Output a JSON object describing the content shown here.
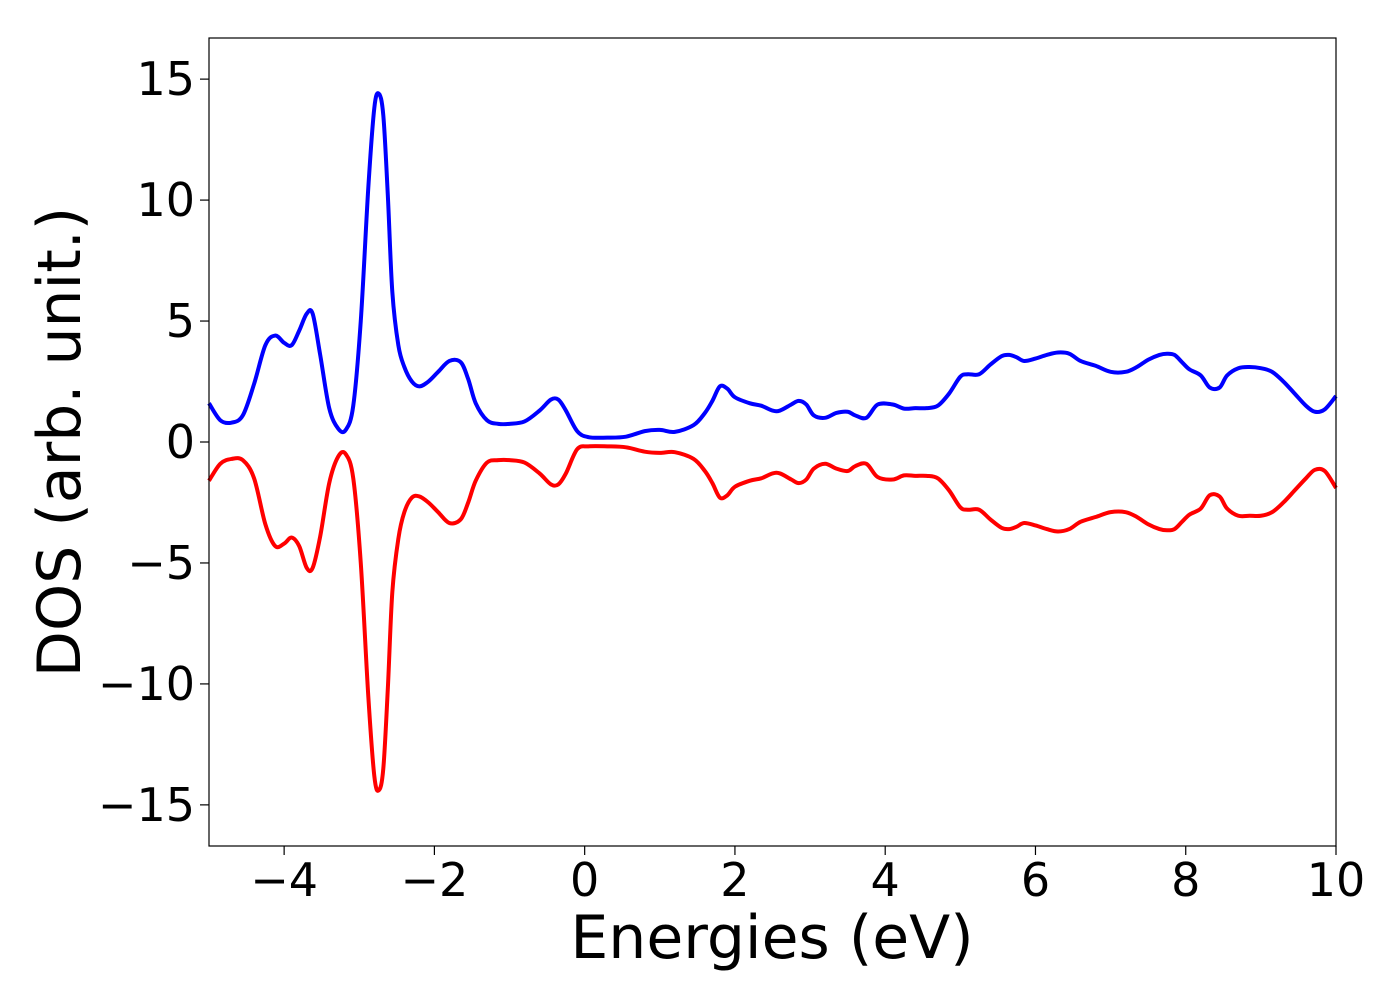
{
  "chart_data": {
    "type": "line",
    "xlabel": "Energies (eV)",
    "ylabel": "DOS (arb. unit.)",
    "xlim": [
      -5,
      10
    ],
    "ylim": [
      -16.7,
      16.7
    ],
    "xticks": [
      -4,
      -2,
      0,
      2,
      4,
      6,
      8,
      10
    ],
    "yticks": [
      -15,
      -10,
      -5,
      0,
      5,
      10,
      15
    ],
    "xtick_labels": [
      "−4",
      "−2",
      "0",
      "2",
      "4",
      "6",
      "8",
      "10"
    ],
    "ytick_labels": [
      "−15",
      "−10",
      "−5",
      "0",
      "5",
      "10",
      "15"
    ],
    "grid": false,
    "legend": "none",
    "series": [
      {
        "color": "#0000ff",
        "x": [
          -5.0,
          -4.85,
          -4.7,
          -4.55,
          -4.4,
          -4.25,
          -4.12,
          -4.0,
          -3.9,
          -3.8,
          -3.7,
          -3.62,
          -3.52,
          -3.4,
          -3.28,
          -3.18,
          -3.08,
          -2.98,
          -2.88,
          -2.8,
          -2.74,
          -2.68,
          -2.62,
          -2.56,
          -2.48,
          -2.4,
          -2.3,
          -2.2,
          -2.08,
          -1.95,
          -1.8,
          -1.65,
          -1.55,
          -1.45,
          -1.3,
          -1.15,
          -1.0,
          -0.8,
          -0.6,
          -0.45,
          -0.35,
          -0.25,
          -0.1,
          0.05,
          0.3,
          0.55,
          0.8,
          1.0,
          1.2,
          1.45,
          1.6,
          1.7,
          1.8,
          1.9,
          2.0,
          2.2,
          2.35,
          2.5,
          2.6,
          2.75,
          2.85,
          2.95,
          3.05,
          3.2,
          3.35,
          3.5,
          3.6,
          3.75,
          3.9,
          4.1,
          4.25,
          4.4,
          4.55,
          4.7,
          4.85,
          5.0,
          5.1,
          5.25,
          5.4,
          5.55,
          5.65,
          5.75,
          5.85,
          6.0,
          6.15,
          6.3,
          6.45,
          6.6,
          6.8,
          7.0,
          7.2,
          7.35,
          7.5,
          7.65,
          7.75,
          7.85,
          7.95,
          8.05,
          8.2,
          8.32,
          8.45,
          8.55,
          8.7,
          8.85,
          9.0,
          9.15,
          9.3,
          9.45,
          9.6,
          9.72,
          9.85,
          10.0
        ],
        "y": [
          1.6,
          0.9,
          0.8,
          1.1,
          2.4,
          4.0,
          4.4,
          4.1,
          4.0,
          4.6,
          5.3,
          5.3,
          3.6,
          1.4,
          0.55,
          0.5,
          1.5,
          5.0,
          10.5,
          13.8,
          14.4,
          13.5,
          10.2,
          6.2,
          4.0,
          3.1,
          2.5,
          2.3,
          2.5,
          2.9,
          3.35,
          3.3,
          2.6,
          1.6,
          0.9,
          0.75,
          0.75,
          0.85,
          1.3,
          1.75,
          1.75,
          1.3,
          0.45,
          0.2,
          0.18,
          0.22,
          0.45,
          0.5,
          0.42,
          0.7,
          1.2,
          1.7,
          2.3,
          2.2,
          1.85,
          1.6,
          1.5,
          1.3,
          1.3,
          1.55,
          1.7,
          1.55,
          1.1,
          1.0,
          1.2,
          1.25,
          1.1,
          1.0,
          1.55,
          1.55,
          1.38,
          1.4,
          1.4,
          1.5,
          2.0,
          2.7,
          2.8,
          2.8,
          3.2,
          3.55,
          3.6,
          3.5,
          3.35,
          3.45,
          3.6,
          3.7,
          3.65,
          3.35,
          3.15,
          2.9,
          2.9,
          3.1,
          3.4,
          3.6,
          3.65,
          3.6,
          3.3,
          3.0,
          2.75,
          2.25,
          2.25,
          2.75,
          3.05,
          3.1,
          3.05,
          2.9,
          2.5,
          2.0,
          1.5,
          1.25,
          1.35,
          1.9
        ]
      },
      {
        "color": "#ff0000",
        "x": [
          -5.0,
          -4.85,
          -4.7,
          -4.55,
          -4.4,
          -4.25,
          -4.12,
          -4.0,
          -3.9,
          -3.8,
          -3.7,
          -3.62,
          -3.52,
          -3.4,
          -3.28,
          -3.18,
          -3.08,
          -2.98,
          -2.88,
          -2.8,
          -2.74,
          -2.68,
          -2.62,
          -2.56,
          -2.48,
          -2.4,
          -2.3,
          -2.2,
          -2.08,
          -1.95,
          -1.8,
          -1.65,
          -1.55,
          -1.45,
          -1.3,
          -1.15,
          -1.0,
          -0.8,
          -0.6,
          -0.45,
          -0.35,
          -0.25,
          -0.1,
          0.05,
          0.3,
          0.55,
          0.8,
          1.0,
          1.2,
          1.45,
          1.6,
          1.7,
          1.8,
          1.9,
          2.0,
          2.2,
          2.35,
          2.5,
          2.6,
          2.75,
          2.85,
          2.95,
          3.05,
          3.2,
          3.35,
          3.5,
          3.6,
          3.75,
          3.9,
          4.1,
          4.25,
          4.4,
          4.55,
          4.7,
          4.85,
          5.0,
          5.1,
          5.25,
          5.4,
          5.55,
          5.65,
          5.75,
          5.85,
          6.0,
          6.15,
          6.3,
          6.45,
          6.6,
          6.8,
          7.0,
          7.2,
          7.35,
          7.5,
          7.65,
          7.75,
          7.85,
          7.95,
          8.05,
          8.2,
          8.32,
          8.45,
          8.55,
          8.7,
          8.85,
          9.0,
          9.15,
          9.3,
          9.45,
          9.6,
          9.72,
          9.85,
          10.0
        ],
        "y": [
          -1.6,
          -0.9,
          -0.7,
          -0.75,
          -1.5,
          -3.4,
          -4.3,
          -4.2,
          -3.95,
          -4.3,
          -5.2,
          -5.2,
          -3.9,
          -1.7,
          -0.6,
          -0.5,
          -1.5,
          -5.0,
          -10.5,
          -13.8,
          -14.4,
          -13.5,
          -10.2,
          -6.2,
          -4.0,
          -2.9,
          -2.3,
          -2.25,
          -2.5,
          -2.9,
          -3.35,
          -3.2,
          -2.5,
          -1.6,
          -0.85,
          -0.75,
          -0.75,
          -0.85,
          -1.3,
          -1.75,
          -1.75,
          -1.3,
          -0.3,
          -0.18,
          -0.18,
          -0.22,
          -0.4,
          -0.45,
          -0.42,
          -0.7,
          -1.2,
          -1.7,
          -2.3,
          -2.2,
          -1.85,
          -1.6,
          -1.5,
          -1.3,
          -1.3,
          -1.55,
          -1.7,
          -1.55,
          -1.1,
          -0.9,
          -1.1,
          -1.2,
          -1.0,
          -0.9,
          -1.45,
          -1.55,
          -1.38,
          -1.4,
          -1.4,
          -1.5,
          -2.0,
          -2.7,
          -2.8,
          -2.8,
          -3.2,
          -3.55,
          -3.6,
          -3.5,
          -3.35,
          -3.45,
          -3.6,
          -3.7,
          -3.6,
          -3.3,
          -3.1,
          -2.9,
          -2.9,
          -3.1,
          -3.4,
          -3.6,
          -3.65,
          -3.6,
          -3.3,
          -3.0,
          -2.75,
          -2.2,
          -2.25,
          -2.75,
          -3.05,
          -3.05,
          -3.05,
          -2.9,
          -2.5,
          -2.0,
          -1.5,
          -1.15,
          -1.2,
          -1.9
        ]
      }
    ]
  }
}
